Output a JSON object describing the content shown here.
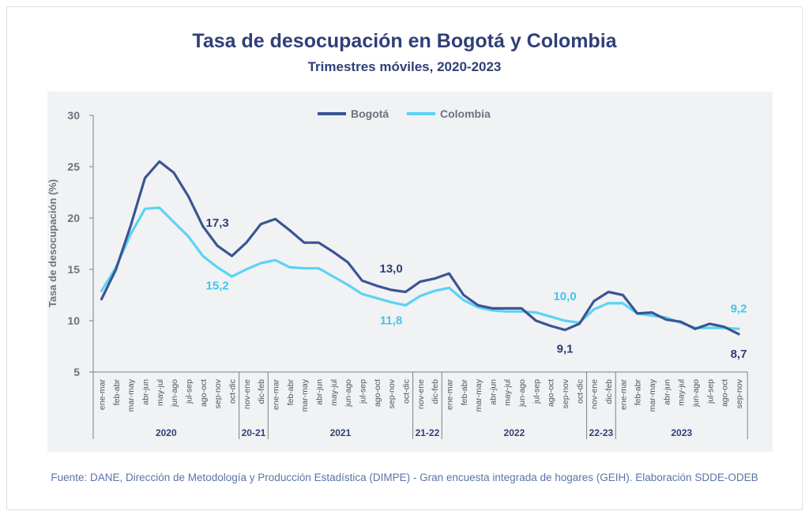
{
  "title": "Tasa de desocupación en Bogotá y Colombia",
  "subtitle": "Trimestres móviles, 2020-2023",
  "source": "Fuente: DANE, Dirección de Metodología y Producción Estadística (DIMPE) - Gran encuesta integrada de hogares (GEIH). Elaboración SDDE-ODEB",
  "colors": {
    "bogota": "#3a5593",
    "colombia": "#5bd3f5",
    "axis_text": "#6b7280",
    "label_dark": "#2f3f78"
  },
  "chart_data": {
    "type": "line",
    "ylabel": "Tasa de desocupación (%)",
    "xlabel": "",
    "ylim": [
      5,
      30
    ],
    "yticks": [
      5,
      10,
      15,
      20,
      25,
      30
    ],
    "grid": false,
    "legend": "top-center",
    "categories": [
      "ene-mar",
      "feb-abr",
      "mar-may",
      "abr-jun",
      "may-jul",
      "jun-ago",
      "jul-sep",
      "ago-oct",
      "sep-nov",
      "oct-dic",
      "nov-ene",
      "dic-feb",
      "ene-mar",
      "feb-abr",
      "mar-may",
      "abr-jun",
      "may-jul",
      "jun-ago",
      "jul-sep",
      "ago-oct",
      "sep-nov",
      "oct-dic",
      "nov-ene",
      "dic-feb",
      "ene-mar",
      "feb-abr",
      "mar-may",
      "abr-jun",
      "may-jul",
      "jun-ago",
      "jul-sep",
      "ago-oct",
      "sep-nov",
      "oct-dic",
      "nov-ene",
      "dic-feb",
      "ene-mar",
      "feb-abr",
      "mar-may",
      "abr-jun",
      "may-jul",
      "jun-ago",
      "jul-sep",
      "ago-oct",
      "sep-nov"
    ],
    "year_groups": [
      {
        "label": "2020",
        "start": 0,
        "end": 9
      },
      {
        "label": "20-21",
        "start": 10,
        "end": 11
      },
      {
        "label": "2021",
        "start": 12,
        "end": 21
      },
      {
        "label": "21-22",
        "start": 22,
        "end": 23
      },
      {
        "label": "2022",
        "start": 24,
        "end": 33
      },
      {
        "label": "22-23",
        "start": 34,
        "end": 35
      },
      {
        "label": "2023",
        "start": 36,
        "end": 44
      }
    ],
    "series": [
      {
        "name": "Bogotá",
        "color": "#3a5593",
        "values": [
          12.1,
          15.0,
          19.2,
          23.9,
          25.5,
          24.4,
          22.1,
          19.2,
          17.3,
          16.3,
          17.6,
          19.4,
          19.9,
          18.8,
          17.6,
          17.6,
          16.7,
          15.7,
          13.9,
          13.4,
          13.0,
          12.8,
          13.8,
          14.1,
          14.6,
          12.5,
          11.5,
          11.2,
          11.2,
          11.2,
          10.0,
          9.5,
          9.1,
          9.7,
          11.9,
          12.8,
          12.5,
          10.7,
          10.8,
          10.1,
          9.9,
          9.2,
          9.7,
          9.4,
          8.7
        ]
      },
      {
        "name": "Colombia",
        "color": "#5bd3f5",
        "values": [
          12.9,
          15.2,
          18.4,
          20.9,
          21.0,
          19.6,
          18.2,
          16.3,
          15.2,
          14.3,
          15.0,
          15.6,
          15.9,
          15.2,
          15.1,
          15.1,
          14.3,
          13.5,
          12.6,
          12.2,
          11.8,
          11.5,
          12.4,
          12.9,
          13.2,
          12.0,
          11.3,
          11.0,
          10.9,
          10.9,
          10.8,
          10.4,
          10.0,
          9.8,
          11.1,
          11.7,
          11.7,
          10.7,
          10.5,
          10.3,
          9.8,
          9.3,
          9.3,
          9.3,
          9.2
        ]
      }
    ],
    "annotations": [
      {
        "text": "17,3",
        "series": 0,
        "index": 8
      },
      {
        "text": "15,2",
        "series": 1,
        "index": 8
      },
      {
        "text": "13,0",
        "series": 0,
        "index": 20
      },
      {
        "text": "11,8",
        "series": 1,
        "index": 20
      },
      {
        "text": "10,0",
        "series": 1,
        "index": 32
      },
      {
        "text": "9,1",
        "series": 0,
        "index": 32
      },
      {
        "text": "9,2",
        "series": 1,
        "index": 44
      },
      {
        "text": "8,7",
        "series": 0,
        "index": 44
      }
    ]
  }
}
